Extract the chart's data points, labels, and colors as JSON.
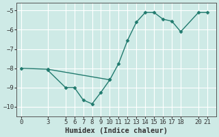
{
  "line1_x": [
    0,
    3,
    10,
    11,
    12,
    13,
    14,
    15,
    16,
    17,
    18,
    20,
    21
  ],
  "line1_y": [
    -8.0,
    -8.05,
    -8.6,
    -7.75,
    -6.55,
    -5.6,
    -5.1,
    -5.1,
    -5.45,
    -5.55,
    -6.1,
    -5.1,
    -5.1
  ],
  "line2_x": [
    3,
    5,
    6,
    7,
    8,
    9,
    10
  ],
  "line2_y": [
    -8.1,
    -9.0,
    -9.0,
    -9.65,
    -9.85,
    -9.25,
    -8.6
  ],
  "line_color": "#217a6e",
  "marker": "D",
  "markersize": 2.5,
  "linewidth": 1.0,
  "xlabel": "Humidex (Indice chaleur)",
  "xlim": [
    -0.5,
    22
  ],
  "ylim": [
    -10.5,
    -4.6
  ],
  "yticks": [
    -10,
    -9,
    -8,
    -7,
    -6,
    -5
  ],
  "xticks": [
    0,
    3,
    5,
    6,
    7,
    8,
    9,
    10,
    11,
    12,
    13,
    14,
    15,
    16,
    17,
    18,
    20,
    21
  ],
  "bg_color": "#ceeae6",
  "grid_color": "#b8ddd8",
  "font_size": 7.5
}
